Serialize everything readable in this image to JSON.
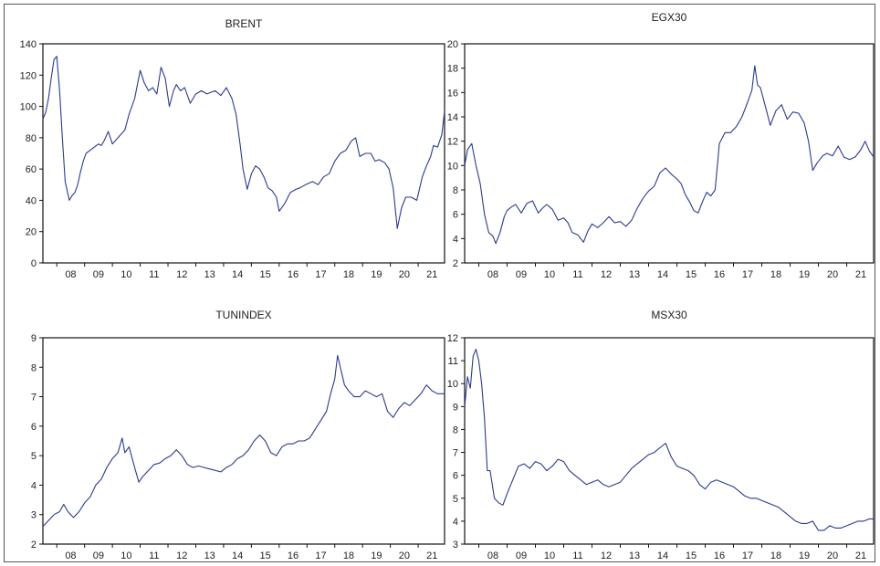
{
  "colors": {
    "series": "#2b3a8f",
    "axis": "#111111",
    "text": "#222222"
  },
  "chart_data": [
    {
      "type": "line",
      "title": "BRENT",
      "ylim": [
        0,
        140
      ],
      "yticks": [
        0,
        20,
        40,
        60,
        80,
        100,
        120,
        140
      ],
      "xlim": [
        2007.5,
        2021.95
      ],
      "xticks": [
        "08",
        "09",
        "10",
        "11",
        "12",
        "13",
        "14",
        "15",
        "16",
        "17",
        "18",
        "19",
        "20",
        "21"
      ],
      "series": [
        {
          "x": [
            2007.5,
            2007.6,
            2007.7,
            2007.8,
            2007.9,
            2008.0,
            2008.1,
            2008.2,
            2008.3,
            2008.45,
            2008.55,
            2008.65,
            2008.75,
            2008.85,
            2008.95,
            2009.05,
            2009.2,
            2009.35,
            2009.5,
            2009.6,
            2009.7,
            2009.85,
            2010.0,
            2010.15,
            2010.3,
            2010.45,
            2010.6,
            2010.8,
            2011.0,
            2011.15,
            2011.3,
            2011.45,
            2011.6,
            2011.75,
            2011.9,
            2012.05,
            2012.2,
            2012.3,
            2012.45,
            2012.6,
            2012.8,
            2013.0,
            2013.2,
            2013.4,
            2013.55,
            2013.7,
            2013.9,
            2014.1,
            2014.3,
            2014.45,
            2014.6,
            2014.7,
            2014.85,
            2015.0,
            2015.15,
            2015.3,
            2015.45,
            2015.6,
            2015.75,
            2015.9,
            2016.0,
            2016.2,
            2016.4,
            2016.6,
            2016.75,
            2016.95,
            2017.2,
            2017.4,
            2017.6,
            2017.8,
            2018.0,
            2018.2,
            2018.4,
            2018.6,
            2018.75,
            2018.9,
            2019.1,
            2019.3,
            2019.45,
            2019.6,
            2019.8,
            2019.95,
            2020.1,
            2020.25,
            2020.4,
            2020.55,
            2020.75,
            2020.95,
            2021.15,
            2021.3,
            2021.45,
            2021.55,
            2021.7,
            2021.85,
            2021.95
          ],
          "values": [
            92,
            96,
            105,
            118,
            130,
            132,
            110,
            80,
            52,
            40,
            43,
            45,
            50,
            58,
            65,
            70,
            72,
            74,
            76,
            75,
            78,
            84,
            76,
            79,
            82,
            85,
            95,
            105,
            123,
            115,
            110,
            112,
            108,
            125,
            118,
            100,
            110,
            114,
            110,
            112,
            102,
            108,
            110,
            108,
            109,
            110,
            107,
            112,
            105,
            95,
            75,
            60,
            47,
            57,
            62,
            60,
            55,
            48,
            46,
            42,
            33,
            38,
            45,
            47,
            48,
            50,
            52,
            50,
            55,
            57,
            65,
            70,
            72,
            78,
            80,
            68,
            70,
            70,
            65,
            66,
            64,
            60,
            48,
            22,
            35,
            42,
            42,
            40,
            55,
            62,
            68,
            75,
            74,
            82,
            97
          ]
        }
      ]
    },
    {
      "type": "line",
      "title": "EGX30",
      "ylim": [
        2,
        20
      ],
      "yticks": [
        2,
        4,
        6,
        8,
        10,
        12,
        14,
        16,
        18,
        20
      ],
      "xlim": [
        2007.5,
        2021.95
      ],
      "xticks": [
        "08",
        "09",
        "10",
        "11",
        "12",
        "13",
        "14",
        "15",
        "16",
        "17",
        "18",
        "19",
        "20",
        "21"
      ],
      "series": [
        {
          "x": [
            2007.5,
            2007.6,
            2007.75,
            2007.9,
            2008.05,
            2008.2,
            2008.35,
            2008.5,
            2008.6,
            2008.75,
            2008.9,
            2009.0,
            2009.15,
            2009.3,
            2009.5,
            2009.7,
            2009.9,
            2010.1,
            2010.25,
            2010.4,
            2010.6,
            2010.8,
            2011.0,
            2011.15,
            2011.3,
            2011.5,
            2011.7,
            2011.85,
            2012.0,
            2012.2,
            2012.4,
            2012.6,
            2012.8,
            2013.0,
            2013.2,
            2013.4,
            2013.6,
            2013.8,
            2014.0,
            2014.2,
            2014.4,
            2014.6,
            2014.8,
            2015.0,
            2015.15,
            2015.3,
            2015.45,
            2015.6,
            2015.75,
            2015.9,
            2016.05,
            2016.2,
            2016.35,
            2016.5,
            2016.7,
            2016.9,
            2017.1,
            2017.3,
            2017.5,
            2017.65,
            2017.75,
            2017.85,
            2017.95,
            2018.1,
            2018.3,
            2018.5,
            2018.7,
            2018.9,
            2019.1,
            2019.3,
            2019.5,
            2019.65,
            2019.8,
            2019.95,
            2020.15,
            2020.3,
            2020.5,
            2020.7,
            2020.9,
            2021.1,
            2021.3,
            2021.5,
            2021.65,
            2021.8,
            2021.95
          ],
          "values": [
            10,
            11.3,
            11.8,
            10,
            8.5,
            6,
            4.5,
            4.2,
            3.6,
            4.5,
            5.8,
            6.3,
            6.6,
            6.8,
            6.1,
            6.9,
            7.1,
            6.1,
            6.5,
            6.8,
            6.4,
            5.5,
            5.7,
            5.3,
            4.5,
            4.3,
            3.7,
            4.6,
            5.2,
            4.9,
            5.3,
            5.8,
            5.3,
            5.4,
            5.0,
            5.5,
            6.5,
            7.3,
            7.9,
            8.3,
            9.4,
            9.8,
            9.3,
            8.9,
            8.5,
            7.6,
            7.0,
            6.3,
            6.1,
            7.0,
            7.8,
            7.5,
            8.0,
            11.8,
            12.7,
            12.7,
            13.2,
            14.0,
            15.2,
            16.2,
            18.2,
            16.6,
            16.4,
            15.1,
            13.3,
            14.5,
            15.0,
            13.8,
            14.4,
            14.3,
            13.5,
            12.0,
            9.6,
            10.2,
            10.8,
            11.0,
            10.8,
            11.6,
            10.7,
            10.5,
            10.7,
            11.3,
            12.0,
            11.2,
            10.7
          ]
        }
      ]
    },
    {
      "type": "line",
      "title": "TUNINDEX",
      "ylim": [
        2,
        9
      ],
      "yticks": [
        2,
        3,
        4,
        5,
        6,
        7,
        8,
        9
      ],
      "xlim": [
        2007.5,
        2021.95
      ],
      "xticks": [
        "08",
        "09",
        "10",
        "11",
        "12",
        "13",
        "14",
        "15",
        "16",
        "17",
        "18",
        "19",
        "20",
        "21"
      ],
      "series": [
        {
          "x": [
            2007.5,
            2007.7,
            2007.9,
            2008.1,
            2008.25,
            2008.4,
            2008.6,
            2008.8,
            2009.0,
            2009.2,
            2009.4,
            2009.6,
            2009.8,
            2010.0,
            2010.2,
            2010.35,
            2010.45,
            2010.6,
            2010.8,
            2010.95,
            2011.1,
            2011.3,
            2011.5,
            2011.7,
            2011.9,
            2012.1,
            2012.3,
            2012.5,
            2012.7,
            2012.9,
            2013.1,
            2013.3,
            2013.5,
            2013.7,
            2013.9,
            2014.1,
            2014.3,
            2014.5,
            2014.7,
            2014.9,
            2015.1,
            2015.3,
            2015.5,
            2015.7,
            2015.9,
            2016.1,
            2016.3,
            2016.5,
            2016.7,
            2016.9,
            2017.1,
            2017.3,
            2017.5,
            2017.7,
            2017.85,
            2018.0,
            2018.1,
            2018.2,
            2018.35,
            2018.5,
            2018.7,
            2018.9,
            2019.1,
            2019.3,
            2019.5,
            2019.7,
            2019.9,
            2020.1,
            2020.3,
            2020.5,
            2020.7,
            2020.9,
            2021.1,
            2021.3,
            2021.5,
            2021.7,
            2021.95
          ],
          "values": [
            2.6,
            2.8,
            3.0,
            3.1,
            3.35,
            3.1,
            2.9,
            3.1,
            3.4,
            3.6,
            4.0,
            4.2,
            4.6,
            4.9,
            5.1,
            5.6,
            5.1,
            5.3,
            4.6,
            4.1,
            4.3,
            4.5,
            4.7,
            4.75,
            4.9,
            5.0,
            5.2,
            5.0,
            4.7,
            4.6,
            4.65,
            4.6,
            4.55,
            4.5,
            4.45,
            4.6,
            4.7,
            4.9,
            5.0,
            5.2,
            5.5,
            5.7,
            5.5,
            5.1,
            5.0,
            5.3,
            5.4,
            5.4,
            5.5,
            5.5,
            5.6,
            5.9,
            6.2,
            6.5,
            7.1,
            7.6,
            8.4,
            8.0,
            7.4,
            7.2,
            7.0,
            7.0,
            7.2,
            7.1,
            7.0,
            7.1,
            6.5,
            6.3,
            6.6,
            6.8,
            6.7,
            6.9,
            7.1,
            7.4,
            7.2,
            7.1,
            7.1
          ]
        }
      ]
    },
    {
      "type": "line",
      "title": "MSX30",
      "ylim": [
        3,
        12
      ],
      "yticks": [
        3,
        4,
        5,
        6,
        7,
        8,
        9,
        10,
        11,
        12
      ],
      "xlim": [
        2007.5,
        2021.95
      ],
      "xticks": [
        "08",
        "09",
        "10",
        "11",
        "12",
        "13",
        "14",
        "15",
        "16",
        "17",
        "18",
        "19",
        "20",
        "21"
      ],
      "series": [
        {
          "x": [
            2007.5,
            2007.6,
            2007.7,
            2007.8,
            2007.9,
            2008.0,
            2008.1,
            2008.2,
            2008.3,
            2008.4,
            2008.55,
            2008.7,
            2008.85,
            2009.0,
            2009.2,
            2009.4,
            2009.6,
            2009.8,
            2010.0,
            2010.2,
            2010.4,
            2010.6,
            2010.8,
            2011.0,
            2011.2,
            2011.4,
            2011.6,
            2011.8,
            2012.0,
            2012.2,
            2012.4,
            2012.6,
            2012.8,
            2013.0,
            2013.2,
            2013.4,
            2013.6,
            2013.8,
            2014.0,
            2014.2,
            2014.4,
            2014.6,
            2014.8,
            2015.0,
            2015.2,
            2015.4,
            2015.6,
            2015.8,
            2016.0,
            2016.2,
            2016.4,
            2016.6,
            2016.8,
            2017.0,
            2017.2,
            2017.4,
            2017.6,
            2017.8,
            2018.0,
            2018.2,
            2018.4,
            2018.6,
            2018.8,
            2019.0,
            2019.2,
            2019.4,
            2019.6,
            2019.8,
            2020.0,
            2020.2,
            2020.4,
            2020.6,
            2020.8,
            2021.0,
            2021.2,
            2021.4,
            2021.6,
            2021.8,
            2021.95
          ],
          "values": [
            9.0,
            10.3,
            9.8,
            11.2,
            11.5,
            11.0,
            10.0,
            8.5,
            6.2,
            6.2,
            5.0,
            4.8,
            4.7,
            5.2,
            5.8,
            6.4,
            6.5,
            6.3,
            6.6,
            6.5,
            6.2,
            6.4,
            6.7,
            6.6,
            6.2,
            6.0,
            5.8,
            5.6,
            5.7,
            5.8,
            5.6,
            5.5,
            5.6,
            5.7,
            6.0,
            6.3,
            6.5,
            6.7,
            6.9,
            7.0,
            7.2,
            7.4,
            6.8,
            6.4,
            6.3,
            6.2,
            6.0,
            5.6,
            5.4,
            5.7,
            5.8,
            5.7,
            5.6,
            5.5,
            5.3,
            5.1,
            5.0,
            5.0,
            4.9,
            4.8,
            4.7,
            4.6,
            4.4,
            4.2,
            4.0,
            3.9,
            3.9,
            4.0,
            3.6,
            3.6,
            3.8,
            3.7,
            3.7,
            3.8,
            3.9,
            4.0,
            4.0,
            4.1,
            4.1
          ]
        }
      ]
    }
  ]
}
